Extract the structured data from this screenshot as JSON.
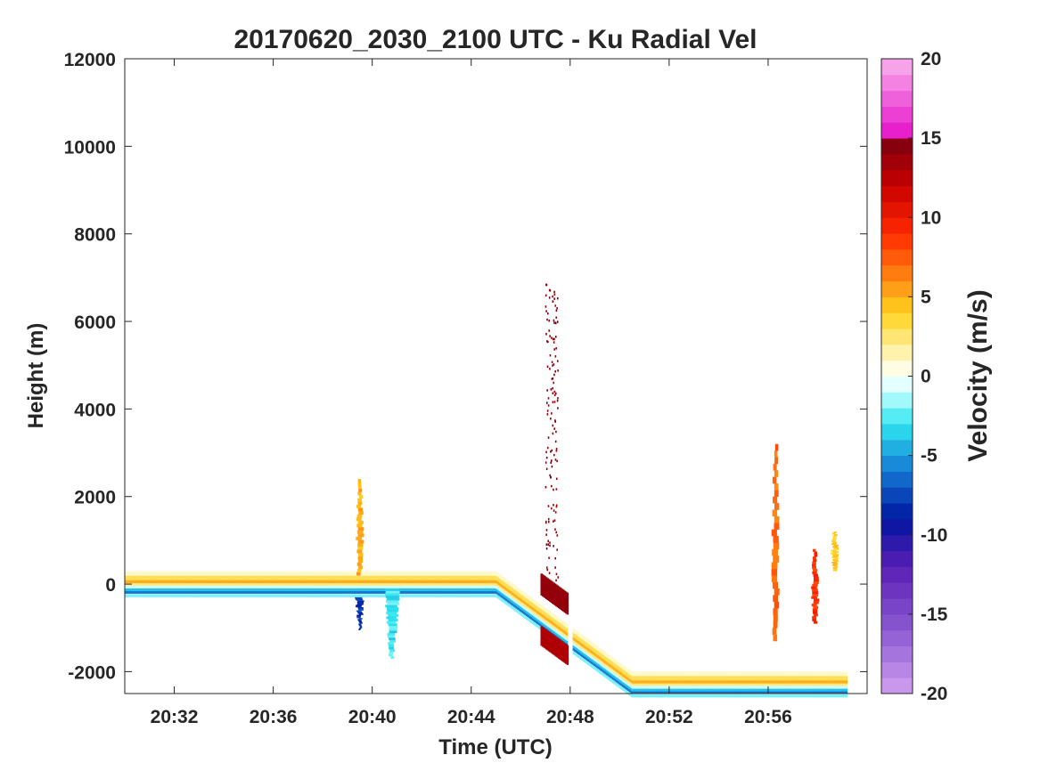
{
  "chart_data": {
    "type": "heatmap",
    "title": "20170620_2030_2100 UTC - Ku Radial Vel",
    "xlabel": "Time (UTC)",
    "ylabel": "Height (m)",
    "x_tick_labels": [
      "20:32",
      "20:36",
      "20:40",
      "20:44",
      "20:48",
      "20:52",
      "20:56"
    ],
    "x_ticks_minutes_after_2030": [
      2,
      6,
      10,
      14,
      18,
      22,
      26
    ],
    "xlim_minutes_after_2030": [
      0,
      30
    ],
    "y_ticks": [
      -2000,
      0,
      2000,
      4000,
      6000,
      8000,
      10000,
      12000
    ],
    "ylim": [
      -2500,
      12000
    ],
    "grid": false,
    "colorbar": {
      "label": "Velocity (m/s)",
      "ticks": [
        20,
        15,
        10,
        5,
        0,
        -5,
        -10,
        -15,
        -20
      ],
      "range": [
        -20,
        20
      ],
      "colors": {
        "pos20": "#f8b4ee",
        "pos16": "#e60fc8",
        "pos15": "#7a0010",
        "pos12": "#c80000",
        "pos9": "#ff2a00",
        "pos6": "#ff8c14",
        "pos4": "#ffd21e",
        "pos1": "#fff8c8",
        "zero": "#ffffff",
        "neg1": "#c8ffff",
        "neg3": "#2ee6f0",
        "neg6": "#1478d2",
        "neg9": "#0014a0",
        "neg12": "#5a1eb4",
        "neg16": "#8c5ad2",
        "neg20": "#d2a0ee"
      }
    },
    "features": {
      "surface_band": {
        "description": "ground/sea-surface return band",
        "path_minutes": [
          0,
          15,
          20.5,
          29.2
        ],
        "path_height_m": [
          -10,
          -10,
          -2300,
          -2300
        ],
        "gap_minutes": [
          17.9,
          18.1
        ]
      },
      "echoes": [
        {
          "t": 9.5,
          "h": [
            200,
            2400
          ],
          "velocity": 5
        },
        {
          "t": 9.5,
          "h": [
            -1050,
            -300
          ],
          "velocity": -8
        },
        {
          "t": 10.8,
          "h": [
            -1700,
            -100
          ],
          "velocity": -3
        },
        {
          "t": 17.2,
          "h": [
            -2300,
            6900
          ],
          "velocity": 15
        },
        {
          "t": 26.3,
          "h": [
            -1300,
            3200
          ],
          "velocity": 7
        },
        {
          "t": 27.9,
          "h": [
            -900,
            800
          ],
          "velocity": 9
        },
        {
          "t": 28.7,
          "h": [
            300,
            1200
          ],
          "velocity": 4
        }
      ]
    }
  }
}
